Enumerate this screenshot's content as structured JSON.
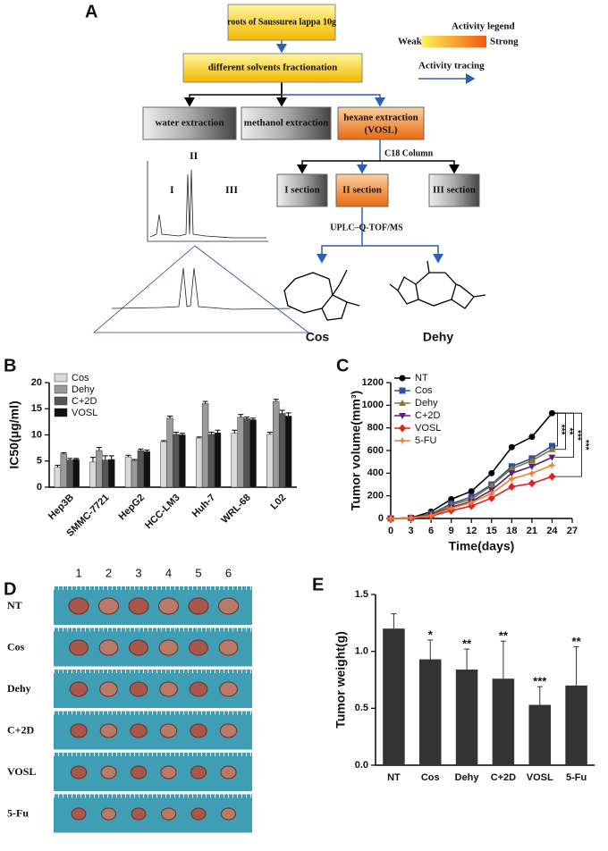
{
  "diagram": {
    "panel": "A",
    "nodes": {
      "root": "roots of Saussurea lappa 10g",
      "fractionation": "different solvents fractionation",
      "water": "water extraction",
      "methanol": "methanol extraction",
      "hexane": "hexane extraction",
      "hexane_sub": "(VOSL)",
      "sec1": "I section",
      "sec2": "II section",
      "sec3": "III section",
      "cos": "Cos",
      "dehy": "Dehy"
    },
    "edge_labels": [
      "C18 Column",
      "UPLC–Q-TOF/MS"
    ],
    "chromatogram_labels": [
      "I",
      "II",
      "III"
    ],
    "legend": {
      "title": "Activity legend",
      "weak": "Weak",
      "strong": "Strong",
      "tracing": "Activity tracing"
    }
  },
  "chart_data": [
    {
      "panel": "B",
      "type": "grouped_bar",
      "ylabel": "IC50(μg/ml)",
      "categories": [
        "Hep3B",
        "SMMC-7721",
        "HepG2",
        "HCC-LM3",
        "Huh-7",
        "WRL-68",
        "L02"
      ],
      "series": [
        {
          "name": "Cos",
          "color": "#d9d9d9",
          "values": [
            3.8,
            4.8,
            5.8,
            8.7,
            9.4,
            10.3,
            10.1
          ],
          "errors": [
            0.4,
            0.9,
            0.3,
            0.2,
            0.2,
            0.6,
            0.4
          ]
        },
        {
          "name": "Dehy",
          "color": "#9a9a9a",
          "values": [
            6.4,
            7.0,
            5.1,
            13.2,
            16.0,
            13.4,
            16.4
          ],
          "errors": [
            0.2,
            0.6,
            0.2,
            0.4,
            0.4,
            0.5,
            0.4
          ]
        },
        {
          "name": "C+2D",
          "color": "#555555",
          "values": [
            5.2,
            5.2,
            7.0,
            10.1,
            10.1,
            13.1,
            14.1
          ],
          "errors": [
            0.3,
            0.8,
            0.3,
            0.4,
            0.4,
            0.3,
            0.6
          ]
        },
        {
          "name": "VOSL",
          "color": "#111111",
          "values": [
            5.3,
            5.3,
            6.8,
            10.0,
            10.4,
            12.9,
            13.6
          ],
          "errors": [
            0.2,
            0.7,
            0.3,
            0.3,
            0.5,
            0.3,
            0.6
          ]
        }
      ],
      "ylim": [
        0,
        20
      ],
      "yticks": [
        0,
        5,
        10,
        15,
        20
      ],
      "legend": "upper-left"
    },
    {
      "panel": "C",
      "type": "line",
      "xlabel": "Time(days)",
      "ylabel": "Tumor volume(mm³)",
      "x": [
        0,
        3,
        6,
        9,
        12,
        15,
        18,
        21,
        24
      ],
      "series": [
        {
          "name": "NT",
          "color": "#000000",
          "marker": "circle",
          "values": [
            0,
            5,
            60,
            170,
            240,
            400,
            630,
            720,
            930
          ]
        },
        {
          "name": "Cos",
          "color": "#2e4fa0",
          "marker": "square",
          "values": [
            0,
            5,
            40,
            130,
            190,
            300,
            460,
            530,
            640
          ]
        },
        {
          "name": "Dehy",
          "color": "#8a7a2a",
          "marker": "triangle",
          "values": [
            0,
            5,
            35,
            120,
            170,
            290,
            440,
            510,
            610
          ]
        },
        {
          "name": "C+2D",
          "color": "#5a1f7a",
          "marker": "triangle-down",
          "values": [
            0,
            5,
            30,
            100,
            150,
            250,
            400,
            460,
            540
          ]
        },
        {
          "name": "VOSL",
          "color": "#e02020",
          "marker": "diamond",
          "values": [
            0,
            3,
            20,
            70,
            110,
            180,
            280,
            310,
            370
          ]
        },
        {
          "name": "5-FU",
          "color": "#f08030",
          "marker": "star",
          "values": [
            0,
            4,
            25,
            90,
            140,
            220,
            350,
            400,
            470
          ]
        }
      ],
      "xlim": [
        0,
        27
      ],
      "xticks": [
        0,
        3,
        6,
        9,
        12,
        15,
        18,
        21,
        24,
        27
      ],
      "ylim": [
        0,
        1200
      ],
      "yticks": [
        0,
        200,
        400,
        600,
        800,
        1000,
        1200
      ],
      "significance": [
        "***",
        "**",
        "***",
        "***"
      ],
      "legend": "upper-left"
    },
    {
      "panel": "E",
      "type": "bar",
      "ylabel": "Tumor weight(g)",
      "categories": [
        "NT",
        "Cos",
        "Dehy",
        "C+2D",
        "VOSL",
        "5-Fu"
      ],
      "values": [
        1.2,
        0.93,
        0.84,
        0.76,
        0.53,
        0.7
      ],
      "errors": [
        0.13,
        0.17,
        0.18,
        0.33,
        0.16,
        0.34
      ],
      "annotations": [
        {
          "index": 1,
          "text": "*"
        },
        {
          "index": 2,
          "text": "**"
        },
        {
          "index": 3,
          "text": "**"
        },
        {
          "index": 4,
          "text": "***"
        },
        {
          "index": 5,
          "text": "**"
        }
      ],
      "color": "#333333",
      "ylim": [
        0,
        1.5
      ],
      "yticks": [
        {
          "value": 0,
          "label": "0.0"
        },
        {
          "value": 0.5,
          "label": "0.5"
        },
        {
          "value": 1,
          "label": "1.0"
        },
        {
          "value": 1.5,
          "label": "1.5"
        }
      ]
    }
  ],
  "photo": {
    "panel": "D",
    "column_labels": [
      "1",
      "2",
      "3",
      "4",
      "5",
      "6"
    ],
    "row_labels": [
      "NT",
      "Cos",
      "Dehy",
      "C+2D",
      "VOSL",
      "5-Fu"
    ]
  }
}
